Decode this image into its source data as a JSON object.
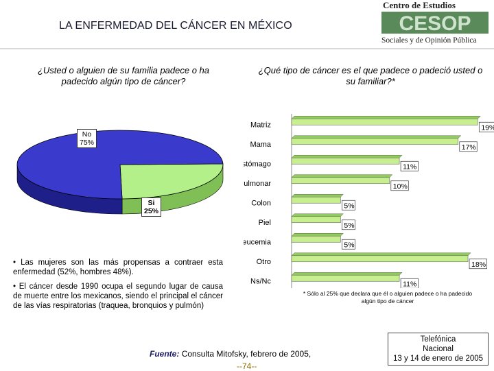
{
  "title": "LA ENFERMEDAD DEL CÁNCER EN MÉXICO",
  "logo": {
    "line1": "Centro de Estudios",
    "mark": "CESOP",
    "line2": "Sociales y de Opinión Pública"
  },
  "colors": {
    "pie_no": "#3a3acc",
    "pie_si": "#b4f08a",
    "bar": "#c7ef8f",
    "bar_dark": "#8fcc58"
  },
  "question_left": "¿Usted o alguien de su familia padece o ha padecido algún tipo de cáncer?",
  "question_right": "¿Qué tipo de cáncer es el que padece o padeció usted o su familiar?*",
  "notes": [
    "• Las mujeres son las más propensas a contraer esta enfermedad (52%, hombres 48%).",
    "• El cáncer desde 1990 ocupa el segundo lugar de causa de muerte entre los mexicanos, siendo el principal el cáncer de las vías respiratorias (traquea, bronquios y pulmón)"
  ],
  "footnote": "* Sólo al 25% que declara que él o alguien padece o ha padecido algún tipo de cáncer",
  "source": {
    "label": "Fuente:",
    "text": "Consulta Mitofsky, febrero de 2005,"
  },
  "page_number": "--74--",
  "provider": {
    "line1": "Telefónica",
    "line2": "Nacional",
    "line3": "13 y 14 de enero de 2005"
  },
  "chart_data": [
    {
      "type": "pie",
      "title": "¿Usted o alguien de su familia padece o ha padecido algún tipo de cáncer?",
      "slices": [
        {
          "label": "No",
          "value": 75,
          "value_label": "75%"
        },
        {
          "label": "Si",
          "value": 25,
          "value_label": "25%"
        }
      ]
    },
    {
      "type": "bar",
      "orientation": "horizontal",
      "title": "¿Qué tipo de cáncer es el que padece o padeció usted o su familiar?*",
      "categories": [
        "Matriz",
        "Mama",
        "Estómago",
        "Pulmonar",
        "Colon",
        "Piel",
        "Leucemia",
        "Otro",
        "Ns/Nc"
      ],
      "values": [
        19,
        17,
        11,
        10,
        5,
        5,
        5,
        18,
        11
      ],
      "value_labels": [
        "19%",
        "17%",
        "11%",
        "10%",
        "5%",
        "5%",
        "5%",
        "18%",
        "11%"
      ],
      "xlim": [
        0,
        20
      ]
    }
  ]
}
